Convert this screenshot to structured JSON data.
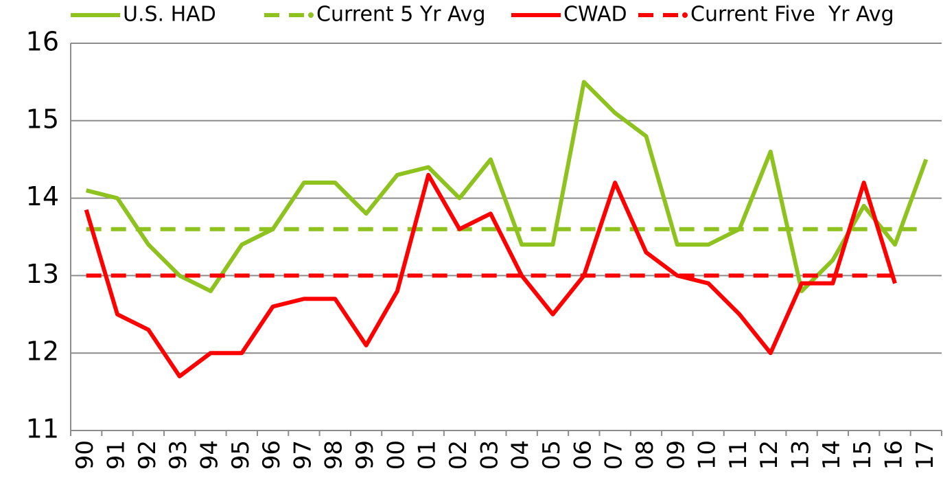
{
  "chart_data": {
    "type": "line",
    "categories": [
      "90",
      "91",
      "92",
      "93",
      "94",
      "95",
      "96",
      "97",
      "98",
      "99",
      "00",
      "01",
      "02",
      "03",
      "04",
      "05",
      "06",
      "07",
      "08",
      "09",
      "10",
      "11",
      "12",
      "13",
      "14",
      "15",
      "16",
      "17"
    ],
    "series": [
      {
        "name": "U.S. HAD",
        "color": "#8dc21f",
        "dash": false,
        "values": [
          14.1,
          14.0,
          13.4,
          13.0,
          12.8,
          13.4,
          13.6,
          14.2,
          14.2,
          13.8,
          14.3,
          14.4,
          14.0,
          14.5,
          13.4,
          13.4,
          15.5,
          15.1,
          14.8,
          13.4,
          13.4,
          13.6,
          14.6,
          12.8,
          13.2,
          13.9,
          13.4,
          14.5
        ]
      },
      {
        "name": "Current 5 Yr Avg",
        "color": "#8dc21f",
        "dash": true,
        "values": [
          13.6,
          13.6,
          13.6,
          13.6,
          13.6,
          13.6,
          13.6,
          13.6,
          13.6,
          13.6,
          13.6,
          13.6,
          13.6,
          13.6,
          13.6,
          13.6,
          13.6,
          13.6,
          13.6,
          13.6,
          13.6,
          13.6,
          13.6,
          13.6,
          13.6,
          13.6,
          13.6,
          13.6
        ]
      },
      {
        "name": "CWAD",
        "color": "#ff0000",
        "dash": false,
        "values": [
          13.85,
          12.5,
          12.3,
          11.7,
          12.0,
          12.0,
          12.6,
          12.7,
          12.7,
          12.1,
          12.8,
          14.3,
          13.6,
          13.8,
          13.0,
          12.5,
          13.0,
          14.2,
          13.3,
          13.0,
          12.9,
          12.5,
          12.0,
          12.9,
          12.9,
          14.2,
          12.9,
          null
        ]
      },
      {
        "name": "Current Five  Yr Avg",
        "color": "#ff0000",
        "dash": true,
        "values": [
          13.0,
          13.0,
          13.0,
          13.0,
          13.0,
          13.0,
          13.0,
          13.0,
          13.0,
          13.0,
          13.0,
          13.0,
          13.0,
          13.0,
          13.0,
          13.0,
          13.0,
          13.0,
          13.0,
          13.0,
          13.0,
          13.0,
          13.0,
          13.0,
          13.0,
          13.0,
          13.0,
          null
        ]
      }
    ],
    "ylim": [
      11,
      16
    ],
    "yticks": [
      11,
      12,
      13,
      14,
      15,
      16
    ],
    "grid": true,
    "legend": "top"
  }
}
